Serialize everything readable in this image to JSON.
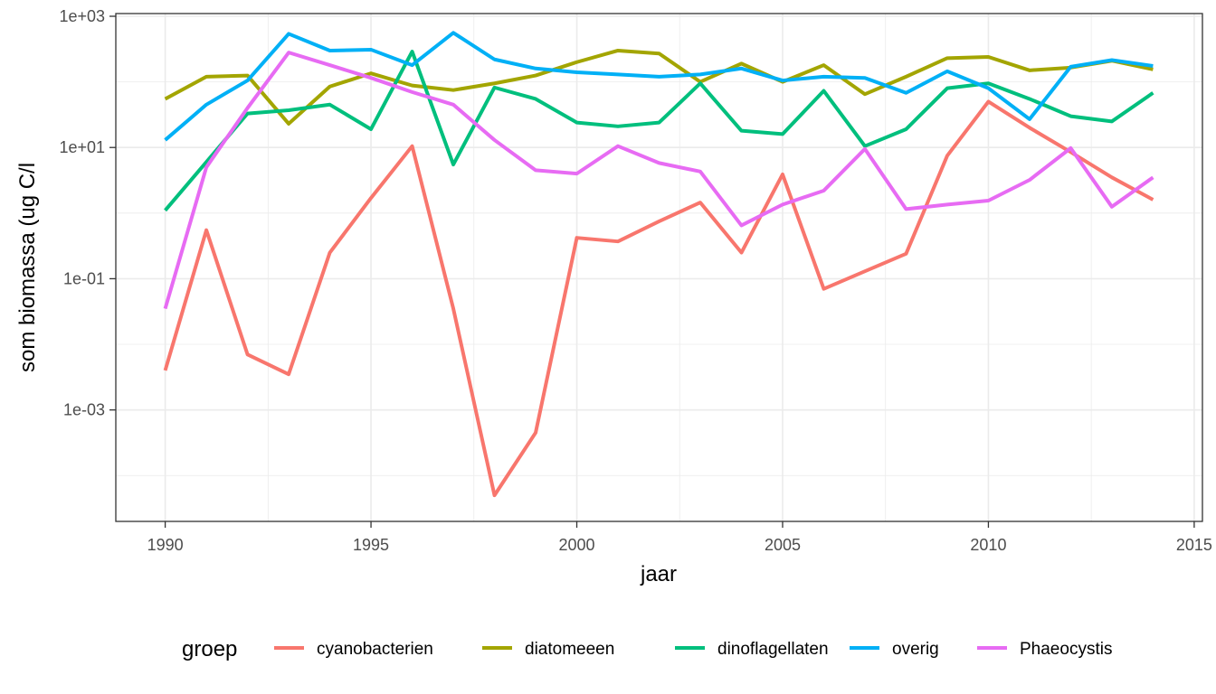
{
  "chart_data": {
    "type": "line",
    "xlabel": "jaar",
    "ylabel": "som biomassa (ug C/l",
    "y_scale": "log10",
    "xlim": [
      1988.8,
      2015.2
    ],
    "ylim": [
      2e-05,
      1100
    ],
    "x_ticks": [
      1990,
      1995,
      2000,
      2005,
      2010,
      2015
    ],
    "x_tick_labels": [
      "1990",
      "1995",
      "2000",
      "2005",
      "2010",
      "2015"
    ],
    "y_ticks": [
      0.001,
      0.1,
      10,
      1000
    ],
    "y_tick_labels": [
      "1e-03",
      "1e-01",
      "1e+01",
      "1e+03"
    ],
    "grid": true,
    "legend_title": "groep",
    "legend_position": "bottom",
    "x": [
      1990,
      1991,
      1992,
      1993,
      1994,
      1995,
      1996,
      1997,
      1998,
      1999,
      2000,
      2001,
      2002,
      2003,
      2004,
      2005,
      2006,
      2007,
      2008,
      2009,
      2010,
      2011,
      2012,
      2013,
      2014
    ],
    "series": [
      {
        "name": "cyanobacterien",
        "color": "#F8766D",
        "values": [
          0.004,
          0.55,
          0.007,
          0.0035,
          0.25,
          1.7,
          10.5,
          0.035,
          5e-05,
          0.00045,
          0.42,
          0.37,
          0.75,
          1.45,
          0.25,
          3.9,
          0.07,
          0.13,
          0.24,
          7.5,
          50,
          20,
          8.5,
          3.5,
          1.6
        ]
      },
      {
        "name": "diatomeeen",
        "color": "#A3A500",
        "values": [
          55,
          120,
          125,
          23,
          85,
          135,
          88,
          75,
          95,
          125,
          200,
          300,
          270,
          100,
          190,
          100,
          180,
          65,
          120,
          230,
          240,
          150,
          165,
          210,
          155
        ]
      },
      {
        "name": "dinoflagellaten",
        "color": "#00BF7D",
        "values": [
          1.1,
          6,
          33,
          37,
          45,
          19,
          290,
          5.5,
          82,
          55,
          24,
          21,
          24,
          95,
          18,
          16,
          73,
          10.5,
          19,
          80,
          95,
          55,
          30,
          25,
          68
        ]
      },
      {
        "name": "overig",
        "color": "#00B0F6",
        "values": [
          13,
          45,
          105,
          540,
          300,
          310,
          180,
          560,
          220,
          160,
          140,
          130,
          120,
          130,
          160,
          105,
          120,
          115,
          68,
          145,
          80,
          27,
          170,
          215,
          175
        ]
      },
      {
        "name": "Phaeocystis",
        "color": "#E76BF3",
        "values": [
          0.035,
          5,
          40,
          280,
          180,
          115,
          70,
          45,
          13,
          4.5,
          4,
          10.5,
          5.8,
          4.3,
          0.65,
          1.35,
          2.2,
          9.5,
          1.15,
          1.35,
          1.55,
          3.2,
          9.8,
          1.25,
          3.5
        ]
      }
    ]
  }
}
